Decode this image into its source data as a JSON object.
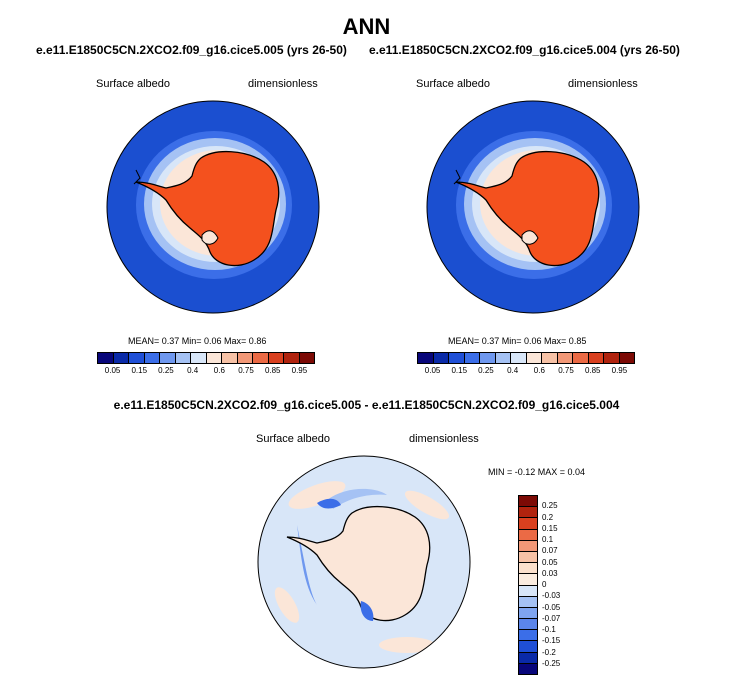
{
  "title": "ANN",
  "case_left": "e.e11.E1850C5CN.2XCO2.f09_g16.cice5.005 (yrs 26-50)",
  "case_right": "e.e11.E1850C5CN.2XCO2.f09_g16.cice5.004 (yrs 26-50)",
  "diff_title": "e.e11.E1850C5CN.2XCO2.f09_g16.cice5.005 - e.e11.E1850C5CN.2XCO2.f09_g16.cice5.004",
  "variable": "Surface albedo",
  "units": "dimensionless",
  "panel_left": {
    "stats": "MEAN=  0.37  Min=  0.06  Max=  0.86",
    "mean": 0.37,
    "min": 0.06,
    "max": 0.86
  },
  "panel_right": {
    "stats": "MEAN=  0.37  Min=  0.06  Max=  0.85",
    "mean": 0.37,
    "min": 0.06,
    "max": 0.85
  },
  "panel_diff": {
    "stats": "MIN =  -0.12 MAX =   0.04",
    "min": -0.12,
    "max": 0.04
  },
  "colorbar_abs": {
    "ticks": [
      "0.05",
      "0.15",
      "0.25",
      "0.4",
      "0.6",
      "0.75",
      "0.85",
      "0.95"
    ],
    "colors": [
      "#08067a",
      "#0a2aa8",
      "#1f4fd6",
      "#3b6ee8",
      "#6f98ef",
      "#a5c2f4",
      "#d8e6f8",
      "#fbe6d8",
      "#f7c2a6",
      "#f29877",
      "#eb6a45",
      "#d9401f",
      "#b0230e",
      "#7c0a05"
    ]
  },
  "colorbar_diff": {
    "ticks": [
      "0.25",
      "0.2",
      "0.15",
      "0.1",
      "0.07",
      "0.05",
      "0.03",
      "0",
      "-0.03",
      "-0.05",
      "-0.07",
      "-0.1",
      "-0.15",
      "-0.2",
      "-0.25"
    ],
    "colors": [
      "#7c0a05",
      "#b0230e",
      "#d9401f",
      "#eb6a45",
      "#f29877",
      "#f7c2a6",
      "#fbe0cc",
      "#fbecdf",
      "#d8e6f8",
      "#a5c2f4",
      "#7fa5f0",
      "#5b85ea",
      "#3b6ee8",
      "#1f4fd6",
      "#0a2aa8",
      "#08067a"
    ]
  },
  "map_colors": {
    "ocean": "#1b4fd0",
    "ocean_mid": "#6f98ef",
    "sea_ice_light": "#d8e6f8",
    "sea_ice_pale": "#fbe6d8",
    "land_ice": "#f4511e",
    "diff_bg": "#d8e6f8",
    "diff_land": "#fbe6d8",
    "diff_neg": "#6f98ef"
  }
}
